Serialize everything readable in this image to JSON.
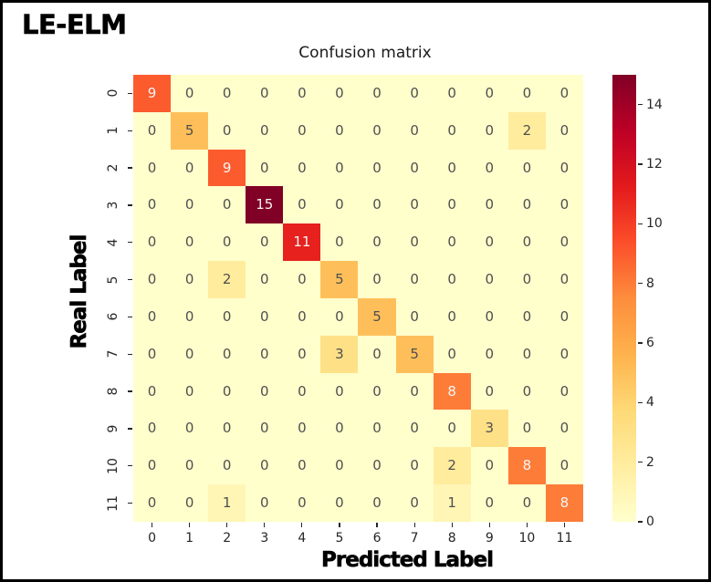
{
  "figure": {
    "model_name": "LE-ELM",
    "title": "Confusion matrix",
    "xlabel": "Predicted Label",
    "ylabel": "Real Label"
  },
  "chart_data": {
    "type": "heatmap",
    "title": "Confusion matrix",
    "xlabel": "Predicted Label",
    "ylabel": "Real Label",
    "x_tick_labels": [
      "0",
      "1",
      "2",
      "3",
      "4",
      "5",
      "6",
      "7",
      "8",
      "9",
      "10",
      "11"
    ],
    "y_tick_labels": [
      "0",
      "1",
      "2",
      "3",
      "4",
      "5",
      "6",
      "7",
      "8",
      "9",
      "10",
      "11"
    ],
    "matrix": [
      [
        9,
        0,
        0,
        0,
        0,
        0,
        0,
        0,
        0,
        0,
        0,
        0
      ],
      [
        0,
        5,
        0,
        0,
        0,
        0,
        0,
        0,
        0,
        0,
        2,
        0
      ],
      [
        0,
        0,
        9,
        0,
        0,
        0,
        0,
        0,
        0,
        0,
        0,
        0
      ],
      [
        0,
        0,
        0,
        15,
        0,
        0,
        0,
        0,
        0,
        0,
        0,
        0
      ],
      [
        0,
        0,
        0,
        0,
        11,
        0,
        0,
        0,
        0,
        0,
        0,
        0
      ],
      [
        0,
        0,
        2,
        0,
        0,
        5,
        0,
        0,
        0,
        0,
        0,
        0
      ],
      [
        0,
        0,
        0,
        0,
        0,
        0,
        5,
        0,
        0,
        0,
        0,
        0
      ],
      [
        0,
        0,
        0,
        0,
        0,
        3,
        0,
        5,
        0,
        0,
        0,
        0
      ],
      [
        0,
        0,
        0,
        0,
        0,
        0,
        0,
        0,
        8,
        0,
        0,
        0
      ],
      [
        0,
        0,
        0,
        0,
        0,
        0,
        0,
        0,
        0,
        3,
        0,
        0
      ],
      [
        0,
        0,
        0,
        0,
        0,
        0,
        0,
        0,
        2,
        0,
        8,
        0
      ],
      [
        0,
        0,
        1,
        0,
        0,
        0,
        0,
        0,
        1,
        0,
        0,
        8
      ]
    ],
    "vmin": 0,
    "vmax": 15,
    "colormap": "YlOrRd",
    "colormap_stops": [
      {
        "pos": 0.0,
        "color": "#ffffcc"
      },
      {
        "pos": 0.125,
        "color": "#ffeda0"
      },
      {
        "pos": 0.25,
        "color": "#fed976"
      },
      {
        "pos": 0.375,
        "color": "#feb24c"
      },
      {
        "pos": 0.5,
        "color": "#fd8d3c"
      },
      {
        "pos": 0.625,
        "color": "#fc4e2a"
      },
      {
        "pos": 0.75,
        "color": "#e31a1c"
      },
      {
        "pos": 0.875,
        "color": "#bd0026"
      },
      {
        "pos": 1.0,
        "color": "#800026"
      }
    ],
    "colorbar_tick_labels": [
      "0",
      "2",
      "4",
      "6",
      "8",
      "10",
      "12",
      "14"
    ],
    "colorbar_tick_values": [
      0,
      2,
      4,
      6,
      8,
      10,
      12,
      14
    ],
    "white_text_min": 8,
    "cell_text_color_low": "#4f4f4f",
    "cell_text_color_high": "#f5f5f5",
    "legend_position": "right",
    "grid": false
  }
}
